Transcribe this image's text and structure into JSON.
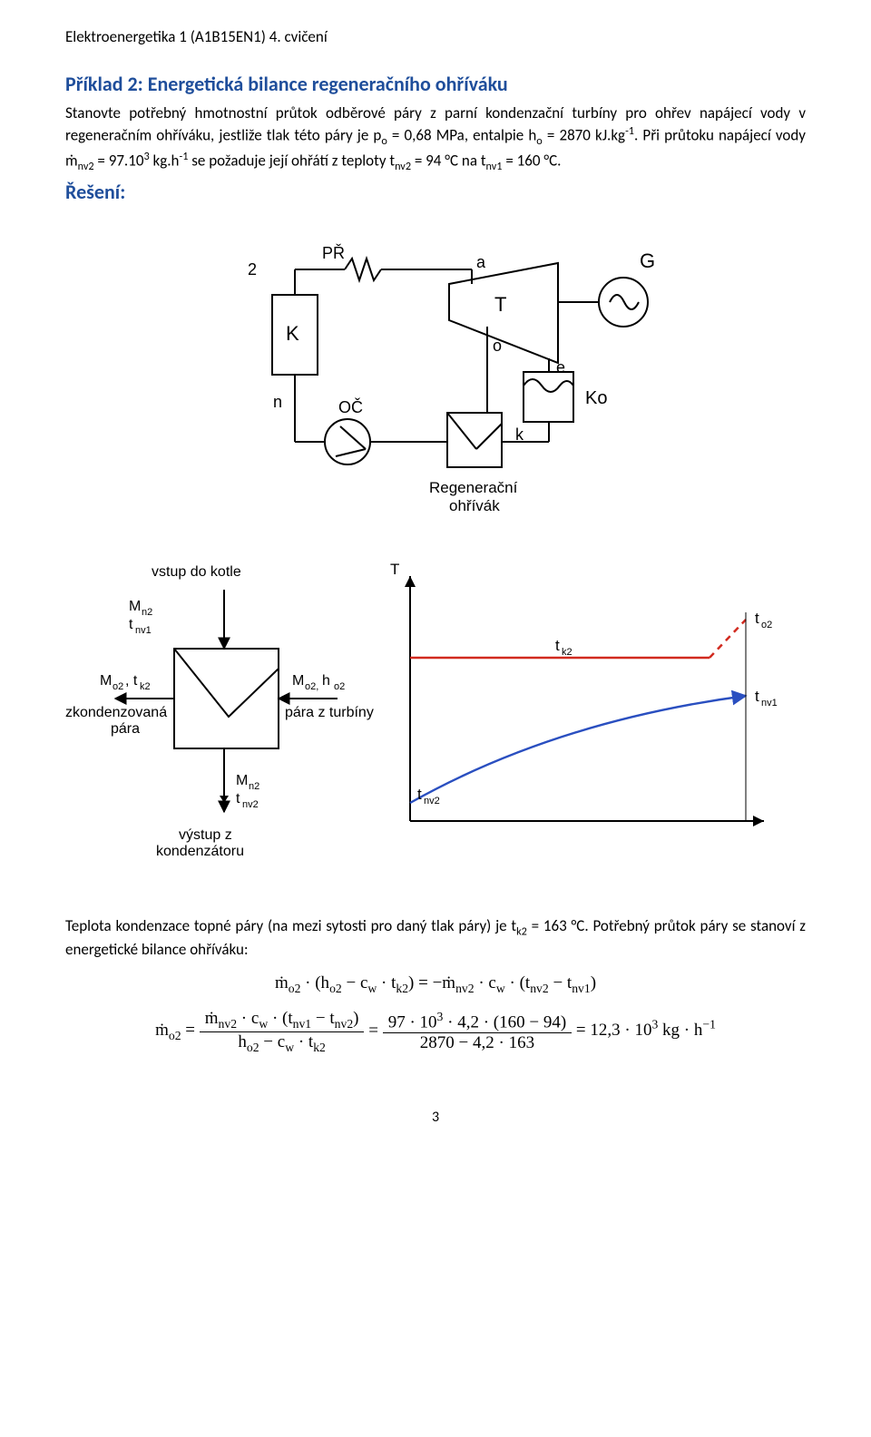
{
  "header": "Elektroenergetika 1 (A1B15EN1) 4. cvičení",
  "title": "Příklad 2: Energetická bilance regeneračního ohříváku",
  "problem_html": "Stanovte potřebný hmotnostní průtok odběrové páry z parní kondenzační turbíny pro ohřev napájecí vody v regeneračním ohříváku, jestliže tlak této páry je p<sub>o</sub> = 0,68 MPa, entalpie h<sub>o</sub> = 2870 kJ.kg<sup>-1</sup>. Při průtoku napájecí vody m&#775;<sub>nv2</sub> = 97.10<sup>3</sup> kg.h<sup>-1</sup> se požaduje její ohřátí z teploty t<sub>nv2</sub> = 94 °C na t<sub>nv1</sub> = 160 °C.",
  "solution_label": "Řešení:",
  "diagram1": {
    "nodes": {
      "PR": "PŘ",
      "K": "K",
      "OC": "OČ",
      "T": "T",
      "G": "G",
      "Ko": "Ko",
      "a": "a",
      "o": "o",
      "e": "e",
      "n": "n",
      "k": "k",
      "two": "2",
      "regen_label": "Regenerační\nohřívák"
    },
    "stroke": "#000000",
    "stroke_w": 2,
    "font": 18,
    "font_small": 16
  },
  "diagram2": {
    "stroke": "#000000",
    "red": "#d12a1f",
    "blue": "#2a4fc0",
    "lw_red": 2.5,
    "lw_blue": 2.2,
    "lw": 2,
    "font": 17,
    "labels": {
      "vstup_kotle": "vstup do kotle",
      "zkond": "zkondenzovaná\npára",
      "para_turb": "pára z turbíny",
      "vystup_kond": "výstup z\nkondenzátoru",
      "Mn2_top": "M<sub>n2</sub>",
      "tnv1": "t<sub>nv1</sub>",
      "Mo2tk2": "M<sub>o2</sub>, t<sub>k2</sub>",
      "Mo2ho2": "M<sub>o2, h<sub>o2</sub></sub>",
      "Mn2_bot": "M<sub>n2</sub>",
      "tnv2_bot": "t<sub>nv2</sub>",
      "T": "T",
      "tk2": "t<sub>k2</sub>",
      "to2": "t<sub>o2</sub>",
      "tnv1_r": "t<sub>nv1</sub>",
      "tnv2_l": "t<sub>nv2</sub>"
    }
  },
  "conclusion_html": "Teplota kondenzace topné páry (na mezi sytosti pro daný tlak páry) je t<sub>k2</sub> = 163 °C. Potřebný průtok páry se stanoví z energetické bilance ohříváku:",
  "eq1_html": "m&#775;<sub>o2</sub> · (h<sub>o2</sub> − c<sub>w</sub> · t<sub>k2</sub>) = −m&#775;<sub>nv2</sub> · c<sub>w</sub> · (t<sub>nv2</sub> − t<sub>nv1</sub>)",
  "eq2": {
    "lhs": "m&#775;<sub>o2</sub> =",
    "num1": "m&#775;<sub>nv2</sub> · c<sub>w</sub> · (t<sub>nv1</sub> − t<sub>nv2</sub>)",
    "den1": "h<sub>o2</sub> − c<sub>w</sub> · t<sub>k2</sub>",
    "mid": "=",
    "num2": "97 · 10<sup>3</sup> · 4,2 · (160 − 94)",
    "den2": "2870 − 4,2 · 163",
    "rhs": "= 12,3 · 10<sup>3</sup> kg · h<sup>−1</sup>"
  },
  "pagenum": "3"
}
